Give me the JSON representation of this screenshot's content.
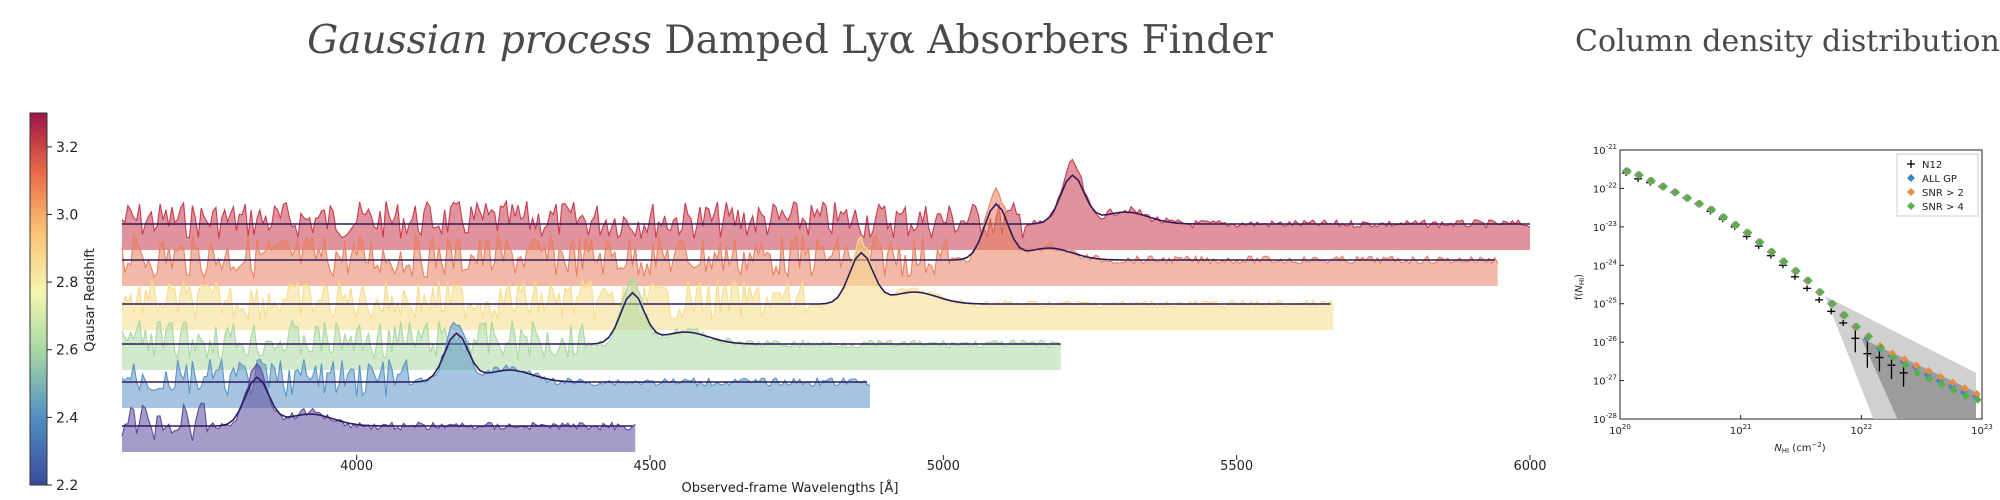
{
  "title": {
    "italic": "Gaussian process",
    "rest": " Damped Lyα Absorbers Finder"
  },
  "side_title": "Column density distribution",
  "chart_data": [
    {
      "type": "line",
      "xlabel": "Observed-frame Wavelengths [Å]",
      "xlim": [
        3600,
        6000
      ],
      "xticks": [
        4000,
        4500,
        5000,
        5500,
        6000
      ],
      "colorbar": {
        "label": "Qausar Redshift",
        "range": [
          2.2,
          3.3
        ],
        "ticks": [
          "2.2",
          "2.4",
          "2.6",
          "2.8",
          "3.0",
          "3.2"
        ]
      },
      "spectra": [
        {
          "redshift": 3.2,
          "lya_peak": 5220,
          "x_end": 6000,
          "color": "#c93a4d"
        },
        {
          "redshift": 3.16,
          "lya_peak": 5090,
          "x_end": 5945,
          "color": "#ea8060"
        },
        {
          "redshift": 2.99,
          "lya_peak": 4860,
          "x_end": 5665,
          "color": "#f7dc8c"
        },
        {
          "redshift": 2.68,
          "lya_peak": 4470,
          "x_end": 5200,
          "color": "#a9d8a0"
        },
        {
          "redshift": 2.43,
          "lya_peak": 4170,
          "x_end": 4875,
          "color": "#5b93c6"
        },
        {
          "redshift": 2.15,
          "lya_peak": 3830,
          "x_end": 4475,
          "color": "#5d4a9e"
        }
      ]
    },
    {
      "type": "scatter",
      "title": "Column density distribution",
      "xlabel": "N_HI (cm⁻²)",
      "ylabel": "f(N_HI)",
      "xscale": "log",
      "yscale": "log",
      "xlim": [
        20,
        23
      ],
      "ylim": [
        -28,
        -21
      ],
      "xtick_exps": [
        "20",
        "21",
        "22",
        "23"
      ],
      "ytick_exps": [
        "-21",
        "-22",
        "-23",
        "-24",
        "-25",
        "-26",
        "-27",
        "-28"
      ],
      "legend": [
        "N12",
        "ALL GP",
        "SNR > 2",
        "SNR > 4"
      ],
      "colors": {
        "N12": "#000000",
        "ALL GP": "#3d86c6",
        "SNR > 2": "#f08a3e",
        "SNR > 4": "#55b04d"
      },
      "series": [
        {
          "name": "N12",
          "x": [
            20.05,
            20.15,
            20.25,
            20.35,
            20.45,
            20.55,
            20.65,
            20.75,
            20.85,
            20.95,
            21.05,
            21.15,
            21.25,
            21.35,
            21.45,
            21.55,
            21.65,
            21.75,
            21.85,
            21.95,
            22.05,
            22.15,
            22.25,
            22.35
          ],
          "y": [
            -21.6,
            -21.75,
            -21.85,
            -21.95,
            -22.1,
            -22.25,
            -22.4,
            -22.6,
            -22.8,
            -23.0,
            -23.25,
            -23.5,
            -23.75,
            -24.0,
            -24.3,
            -24.6,
            -24.9,
            -25.2,
            -25.5,
            -25.9,
            -26.3,
            -26.4,
            -26.6,
            -26.8
          ]
        },
        {
          "name": "ALL GP",
          "x": [
            20.05,
            20.15,
            20.25,
            20.35,
            20.45,
            20.55,
            20.65,
            20.75,
            20.85,
            20.95,
            21.05,
            21.15,
            21.25,
            21.35,
            21.45,
            21.55,
            21.65,
            21.75,
            21.85,
            21.95,
            22.05,
            22.15,
            22.25,
            22.35,
            22.45,
            22.55,
            22.65,
            22.75,
            22.85,
            22.95
          ],
          "y": [
            -21.55,
            -21.65,
            -21.8,
            -21.95,
            -22.1,
            -22.25,
            -22.4,
            -22.55,
            -22.75,
            -22.95,
            -23.15,
            -23.4,
            -23.65,
            -23.9,
            -24.15,
            -24.4,
            -24.7,
            -25.0,
            -25.3,
            -25.6,
            -25.9,
            -26.15,
            -26.35,
            -26.5,
            -26.65,
            -26.85,
            -27.0,
            -27.15,
            -27.3,
            -27.4
          ]
        },
        {
          "name": "SNR > 2",
          "x": [
            20.05,
            20.15,
            20.25,
            20.35,
            20.45,
            20.55,
            20.65,
            20.75,
            20.85,
            20.95,
            21.05,
            21.15,
            21.25,
            21.35,
            21.45,
            21.55,
            21.65,
            21.75,
            21.85,
            21.95,
            22.05,
            22.15,
            22.25,
            22.35,
            22.45,
            22.55,
            22.65,
            22.75,
            22.85,
            22.95
          ],
          "y": [
            -21.55,
            -21.65,
            -21.8,
            -21.95,
            -22.1,
            -22.25,
            -22.4,
            -22.55,
            -22.75,
            -22.95,
            -23.15,
            -23.4,
            -23.65,
            -23.9,
            -24.15,
            -24.4,
            -24.7,
            -25.0,
            -25.3,
            -25.6,
            -25.85,
            -26.1,
            -26.3,
            -26.45,
            -26.6,
            -26.75,
            -26.9,
            -27.05,
            -27.2,
            -27.35
          ]
        },
        {
          "name": "SNR > 4",
          "x": [
            20.05,
            20.15,
            20.25,
            20.35,
            20.45,
            20.55,
            20.65,
            20.75,
            20.85,
            20.95,
            21.05,
            21.15,
            21.25,
            21.35,
            21.45,
            21.55,
            21.65,
            21.75,
            21.85,
            21.95,
            22.05,
            22.15,
            22.25,
            22.35,
            22.45,
            22.55,
            22.65,
            22.75,
            22.85,
            22.95
          ],
          "y": [
            -21.55,
            -21.65,
            -21.8,
            -21.95,
            -22.1,
            -22.25,
            -22.4,
            -22.55,
            -22.75,
            -22.95,
            -23.15,
            -23.4,
            -23.65,
            -23.9,
            -24.15,
            -24.4,
            -24.7,
            -25.0,
            -25.3,
            -25.6,
            -25.85,
            -26.15,
            -26.4,
            -26.6,
            -26.8,
            -26.95,
            -27.1,
            -27.25,
            -27.4,
            -27.5
          ]
        }
      ]
    }
  ]
}
